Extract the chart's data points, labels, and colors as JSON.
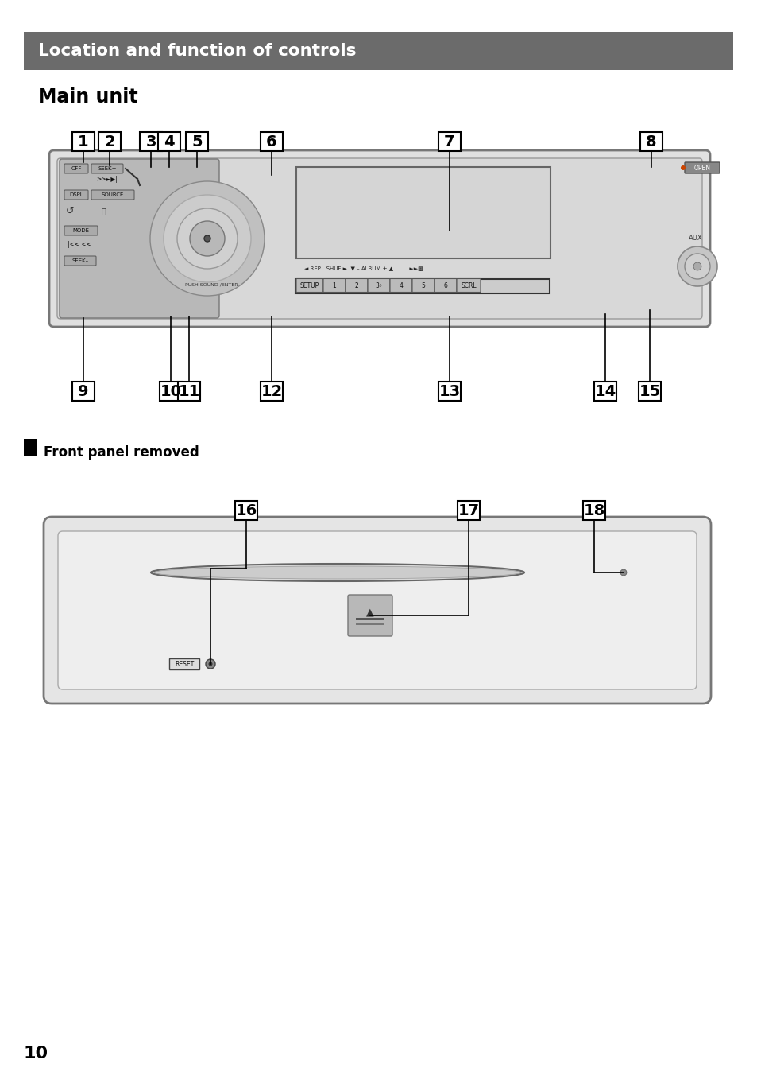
{
  "page_bg": "#ffffff",
  "header_bg": "#6b6b6b",
  "header_text": "Location and function of controls",
  "header_text_color": "#ffffff",
  "section1_title": "Main unit",
  "section2_title": "Front panel removed",
  "page_number": "10",
  "top_callouts": [
    "1",
    "2",
    "3",
    "4",
    "5",
    "6",
    "7",
    "8"
  ],
  "bottom_callouts": [
    "9",
    "10",
    "11",
    "12",
    "13",
    "14",
    "15"
  ],
  "front_panel_callouts": [
    "16",
    "17",
    "18"
  ]
}
